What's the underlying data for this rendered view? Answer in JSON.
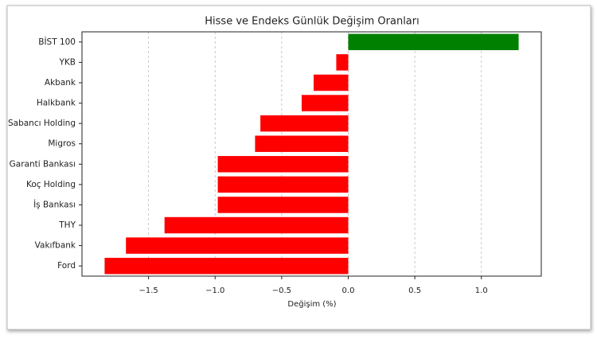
{
  "chart_data": {
    "type": "barh",
    "title": "Hisse ve Endeks Günlük Değişim Oranları",
    "x_label": "Değişim (%)",
    "categories": [
      "BİST 100",
      "YKB",
      "Akbank",
      "Halkbank",
      "Sabancı Holding",
      "Migros",
      "Garanti Bankası",
      "Koç Holding",
      "İş Bankası",
      "THY",
      "Vakıfbank",
      "Ford"
    ],
    "values": [
      1.28,
      -0.09,
      -0.26,
      -0.35,
      -0.66,
      -0.7,
      -0.98,
      -0.98,
      -0.98,
      -1.38,
      -1.67,
      -1.83
    ],
    "colors": [
      "#008000",
      "#ff0000",
      "#ff0000",
      "#ff0000",
      "#ff0000",
      "#ff0000",
      "#ff0000",
      "#ff0000",
      "#ff0000",
      "#ff0000",
      "#ff0000",
      "#ff0000"
    ],
    "xlim": [
      -2.0,
      1.45
    ],
    "xticks": [
      {
        "value": -1.5,
        "label": "−1.5"
      },
      {
        "value": -1.0,
        "label": "−1.0"
      },
      {
        "value": -0.5,
        "label": "−0.5"
      },
      {
        "value": 0.0,
        "label": "0.0"
      },
      0.5,
      {
        "value": 1.0,
        "label": "1.0"
      }
    ],
    "grid": true
  }
}
